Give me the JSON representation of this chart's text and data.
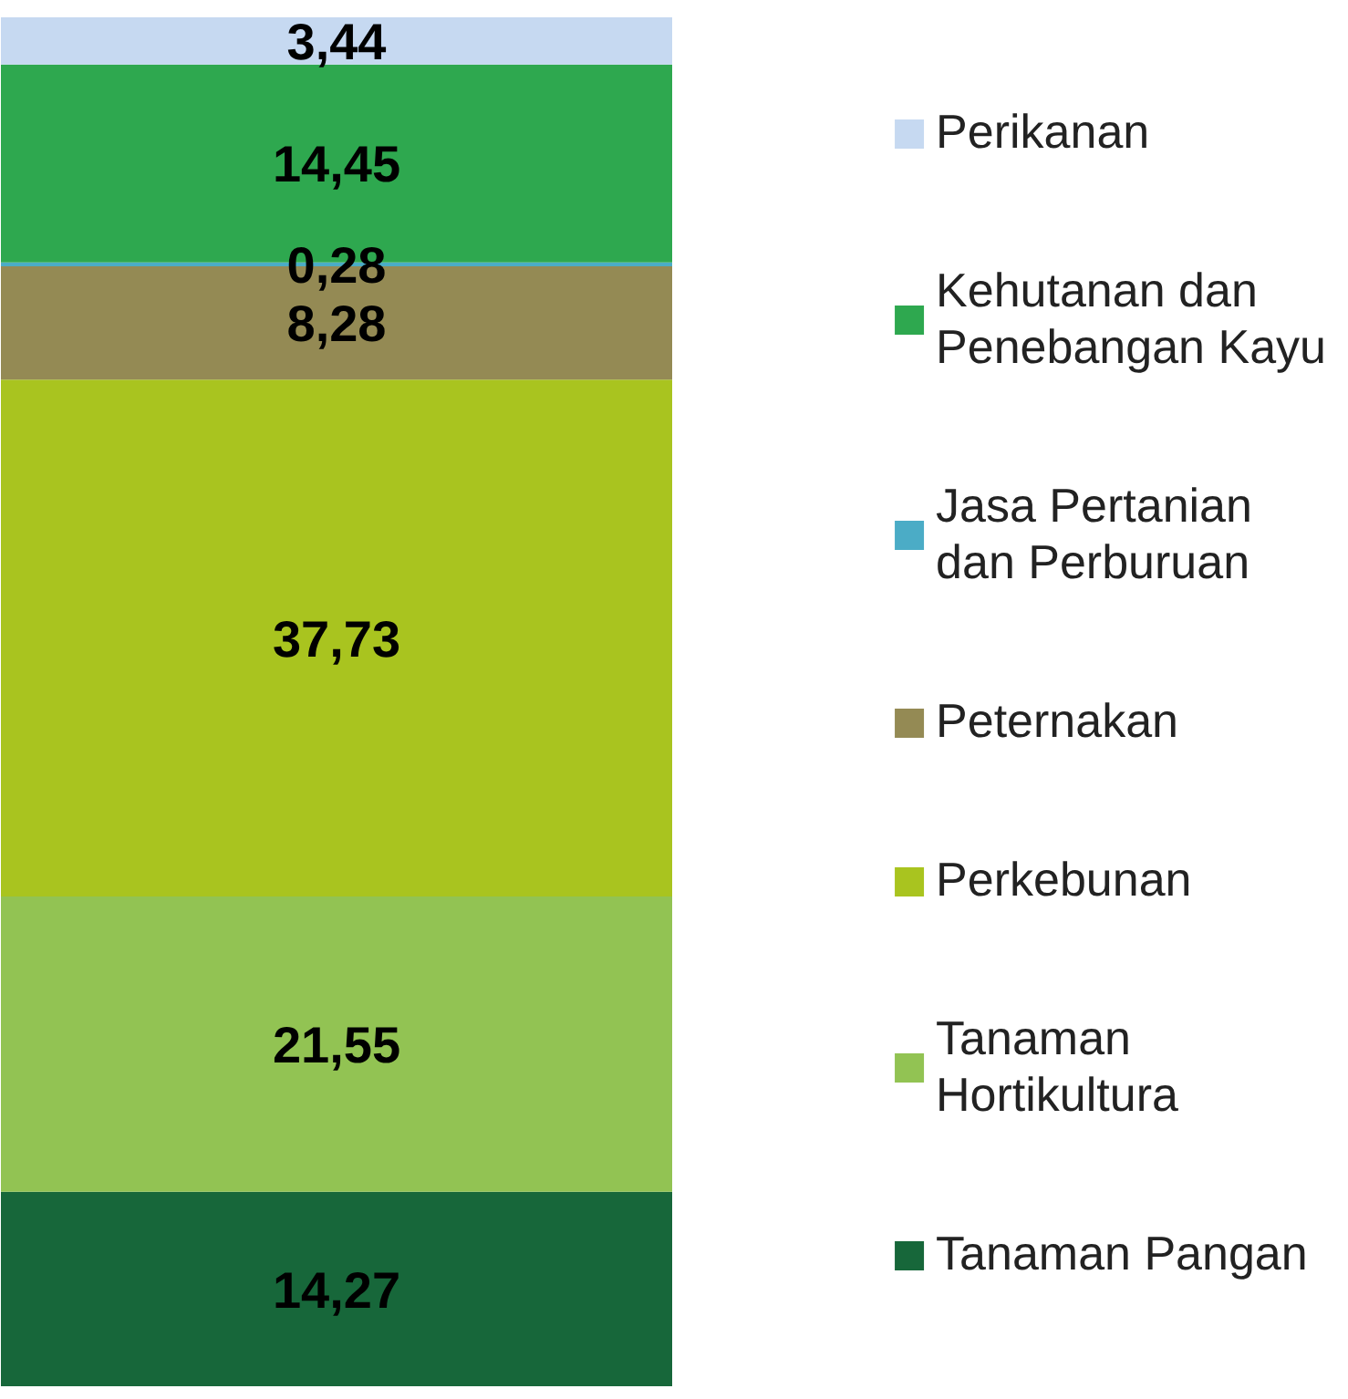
{
  "chart_data": {
    "type": "bar",
    "stacked": true,
    "categories": [
      null
    ],
    "tick_labels": false,
    "legend": "right",
    "series": [
      {
        "name": "Tanaman Pangan",
        "color": "#17673a",
        "values": [
          14.27
        ],
        "value_labels": [
          "14,27"
        ]
      },
      {
        "name": "Tanaman Hortikultura",
        "color": "#92c353",
        "values": [
          21.55
        ],
        "value_labels": [
          "21,55"
        ]
      },
      {
        "name": "Perkebunan",
        "color": "#a9c41f",
        "values": [
          37.73
        ],
        "value_labels": [
          "37,73"
        ]
      },
      {
        "name": "Peternakan",
        "color": "#948a54",
        "values": [
          8.28
        ],
        "value_labels": [
          "8,28"
        ]
      },
      {
        "name": "Jasa Pertanian dan Perburuan",
        "color": "#4bacc6",
        "values": [
          0.28
        ],
        "value_labels": [
          "0,28"
        ]
      },
      {
        "name": "Kehutanan dan Penebangan Kayu",
        "color": "#2ea84f",
        "values": [
          14.45
        ],
        "value_labels": [
          "14,45"
        ]
      },
      {
        "name": "Perikanan",
        "color": "#c6d9f1",
        "values": [
          3.44
        ],
        "value_labels": [
          "3,44"
        ]
      }
    ]
  }
}
